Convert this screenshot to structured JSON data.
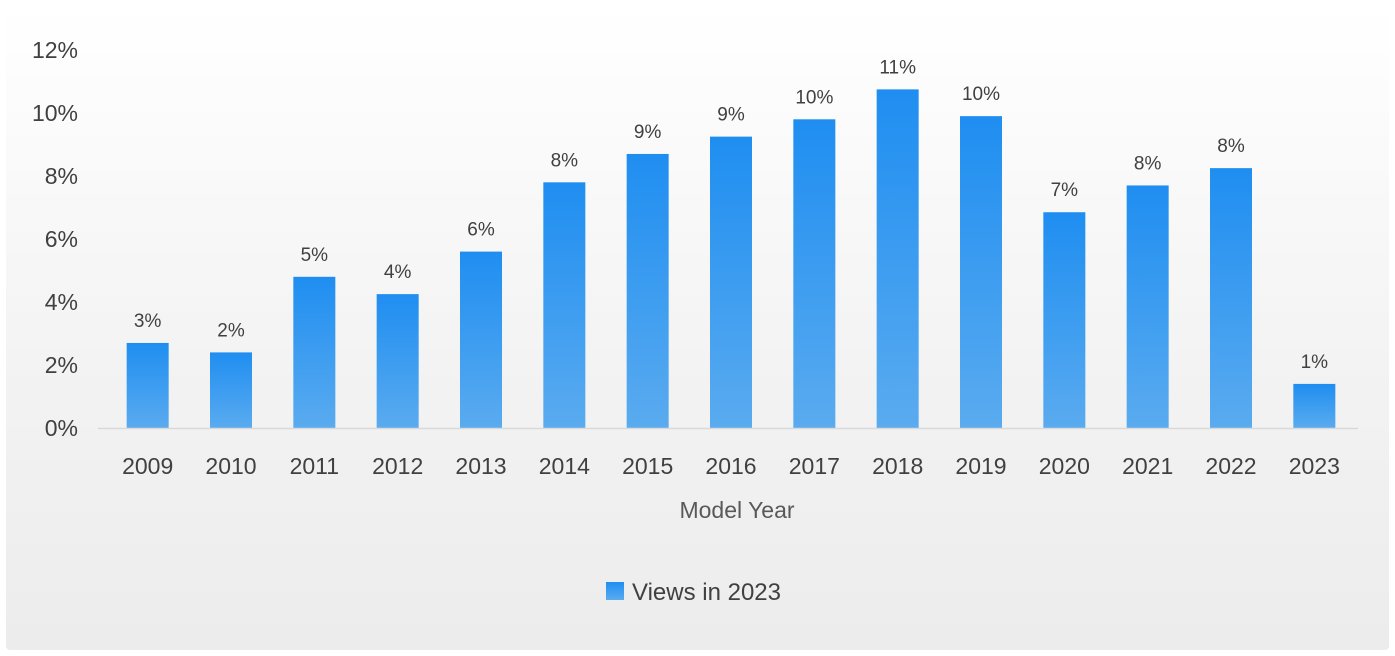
{
  "chart_data": {
    "type": "bar",
    "title": "",
    "xlabel": "Model Year",
    "ylabel": "",
    "categories": [
      "2009",
      "2010",
      "2011",
      "2012",
      "2013",
      "2014",
      "2015",
      "2016",
      "2017",
      "2018",
      "2019",
      "2020",
      "2021",
      "2022",
      "2023"
    ],
    "series": [
      {
        "name": "Views in 2023",
        "values": [
          2.7,
          2.4,
          4.8,
          4.25,
          5.6,
          7.8,
          8.7,
          9.25,
          9.8,
          10.75,
          9.9,
          6.85,
          7.7,
          8.25,
          1.4
        ],
        "labels": [
          "3%",
          "2%",
          "5%",
          "4%",
          "6%",
          "8%",
          "9%",
          "9%",
          "10%",
          "11%",
          "10%",
          "7%",
          "8%",
          "8%",
          "1%"
        ]
      }
    ],
    "ylim": [
      0,
      12
    ],
    "yticks": [
      "0%",
      "2%",
      "4%",
      "6%",
      "8%",
      "10%",
      "12%"
    ],
    "grid": false,
    "legend": "bottom",
    "colors": {
      "bar_top": "#1f8ef1",
      "bar_bottom": "#5aabef",
      "axis": "#d9d9d9"
    }
  }
}
